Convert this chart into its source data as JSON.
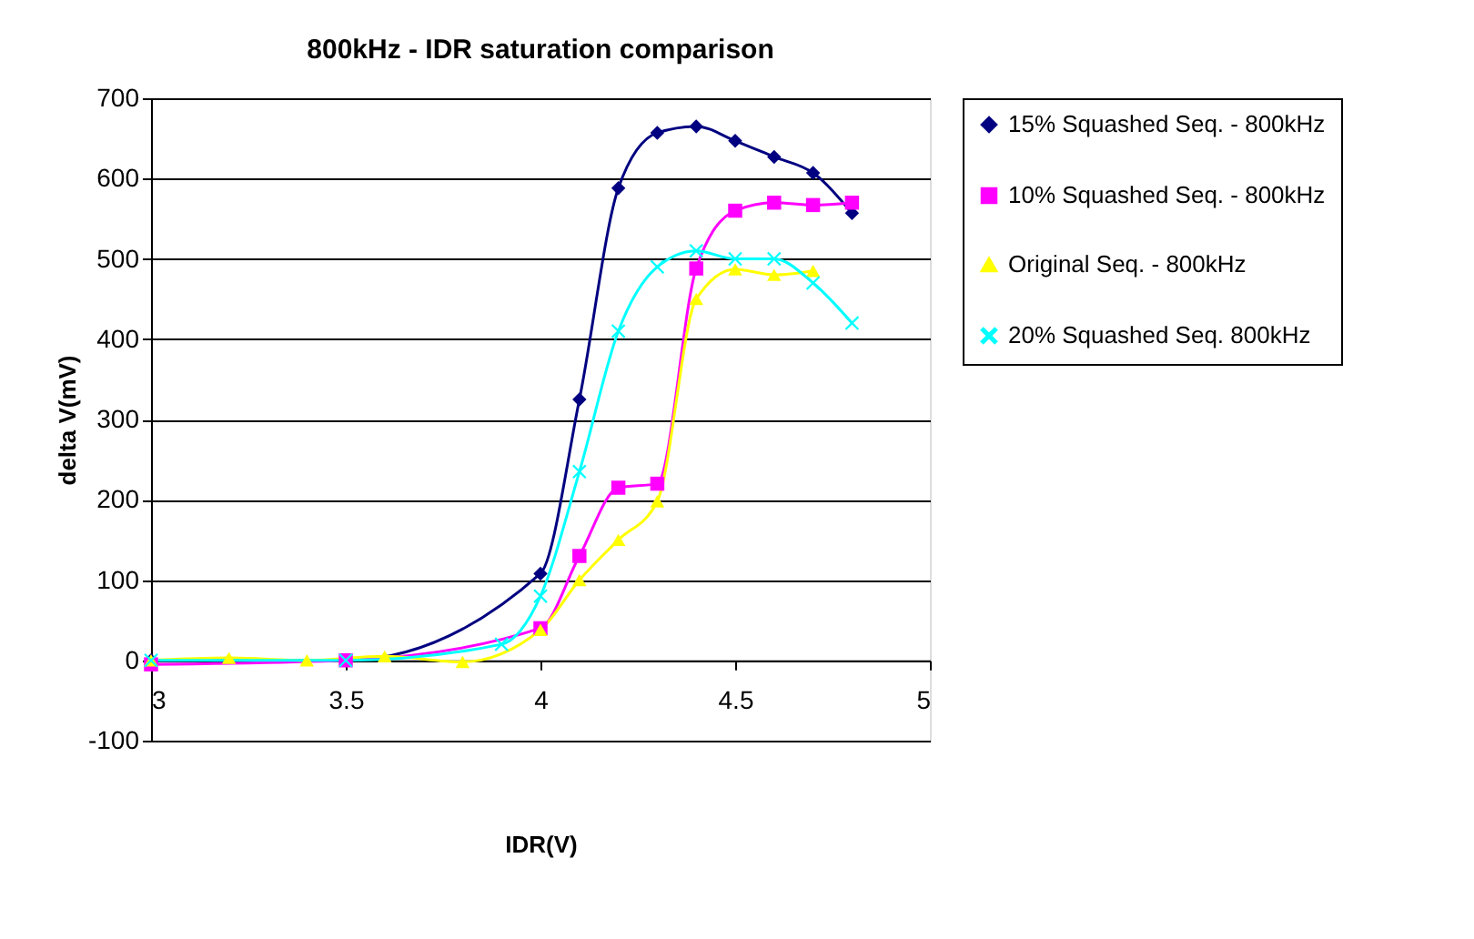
{
  "chart_data": {
    "type": "line",
    "title": "800kHz - IDR saturation comparison",
    "xlabel": "IDR(V)",
    "ylabel": "delta V(mV)",
    "xlim": [
      3,
      5
    ],
    "xticks": [
      3,
      3.5,
      4,
      4.5,
      5
    ],
    "ylim": [
      -100,
      700
    ],
    "yticks": [
      -100,
      0,
      100,
      200,
      300,
      400,
      500,
      600,
      700
    ],
    "grid": "y",
    "legend": "right",
    "series": [
      {
        "name": "15% Squashed Seq. - 800kHz",
        "color": "#000080",
        "marker": "diamond",
        "x": [
          3,
          3.5,
          4.0,
          4.1,
          4.2,
          4.3,
          4.4,
          4.5,
          4.6,
          4.7,
          4.8
        ],
        "values": [
          0,
          0,
          108,
          325,
          588,
          657,
          665,
          647,
          627,
          607,
          557
        ]
      },
      {
        "name": "10% Squashed Seq. - 800kHz",
        "color": "#ff00ff",
        "marker": "square",
        "x": [
          3,
          3.5,
          4.0,
          4.1,
          4.2,
          4.3,
          4.4,
          4.5,
          4.6,
          4.7,
          4.8
        ],
        "values": [
          -5,
          0,
          40,
          130,
          215,
          220,
          488,
          560,
          570,
          567,
          570
        ]
      },
      {
        "name": "Original Seq. - 800kHz",
        "color": "#ffff00",
        "marker": "triangle",
        "x": [
          3,
          3.2,
          3.4,
          3.6,
          3.8,
          4.0,
          4.1,
          4.2,
          4.3,
          4.4,
          4.5,
          4.6,
          4.7
        ],
        "values": [
          0,
          3,
          0,
          5,
          -2,
          38,
          100,
          150,
          198,
          450,
          487,
          480,
          485
        ]
      },
      {
        "name": "20% Squashed Seq. 800kHz",
        "color": "#00ffff",
        "marker": "cross",
        "x": [
          3,
          3.5,
          3.9,
          4.0,
          4.1,
          4.2,
          4.3,
          4.4,
          4.5,
          4.6,
          4.7,
          4.8
        ],
        "values": [
          0,
          0,
          20,
          80,
          235,
          410,
          490,
          510,
          500,
          500,
          470,
          420
        ]
      }
    ]
  }
}
